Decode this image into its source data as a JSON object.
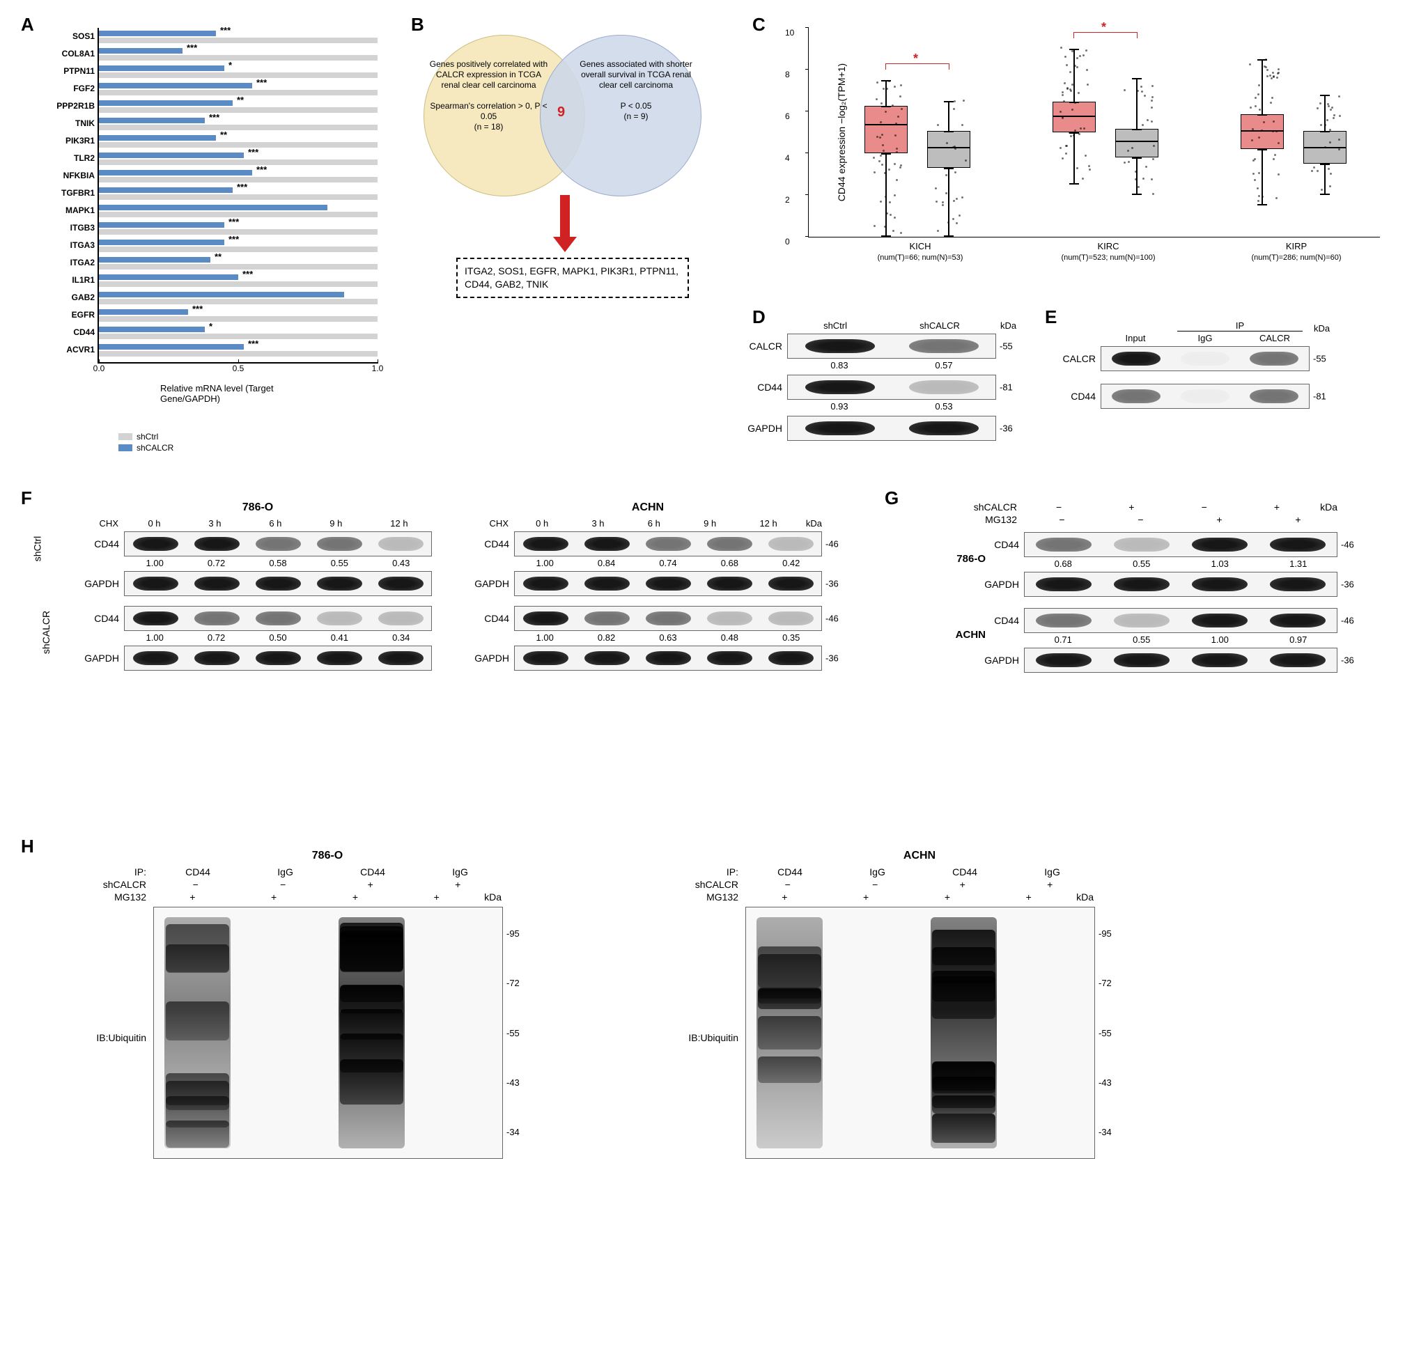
{
  "panel_labels": {
    "A": "A",
    "B": "B",
    "C": "C",
    "D": "D",
    "E": "E",
    "F": "F",
    "G": "G",
    "H": "H"
  },
  "colors": {
    "shCtrl": "#d3d3d3",
    "shCALCR": "#5b8bc5",
    "tumor_box": "#e98b8b",
    "normal_box": "#bdbdbd",
    "sig_red": "#d02222",
    "venn_left": "#f5e6b8",
    "venn_right": "#cdd9ea"
  },
  "panelA": {
    "xlabel": "Relative mRNA level (Target Gene/GAPDH)",
    "xmax": 1.0,
    "xticks": [
      0.0,
      0.5,
      1.0
    ],
    "legend": [
      "shCtrl",
      "shCALCR"
    ],
    "genes": [
      "SOS1",
      "COL8A1",
      "PTPN11",
      "FGF2",
      "PPP2R1B",
      "TNIK",
      "PIK3R1",
      "TLR2",
      "NFKBIA",
      "TGFBR1",
      "MAPK1",
      "ITGB3",
      "ITGA3",
      "ITGA2",
      "IL1R1",
      "GAB2",
      "EGFR",
      "CD44",
      "ACVR1"
    ],
    "shCtrl": [
      1.0,
      1.0,
      1.0,
      1.0,
      1.0,
      1.0,
      1.0,
      1.0,
      1.0,
      1.0,
      1.0,
      1.0,
      1.0,
      1.0,
      1.0,
      1.0,
      1.0,
      1.0,
      1.0
    ],
    "shCALCR": [
      0.42,
      0.3,
      0.45,
      0.55,
      0.48,
      0.38,
      0.42,
      0.52,
      0.55,
      0.48,
      0.82,
      0.45,
      0.45,
      0.4,
      0.5,
      0.88,
      0.32,
      0.38,
      0.52
    ],
    "sig": [
      "***",
      "***",
      "*",
      "***",
      "**",
      "***",
      "**",
      "***",
      "***",
      "***",
      "",
      "***",
      "***",
      "**",
      "***",
      "",
      "***",
      "*",
      "***"
    ]
  },
  "panelB": {
    "left_text": "Genes positively correlated with CALCR expression in TCGA renal clear cell carcinoma",
    "left_sub": "Spearman's correlation > 0, P < 0.05",
    "left_n": "(n = 18)",
    "right_text": "Genes associated with shorter overall survival in TCGA renal clear cell carcinoma",
    "right_sub": "P < 0.05",
    "right_n": "(n = 9)",
    "overlap": "9",
    "genes": "ITGA2, SOS1, EGFR, MAPK1, PIK3R1, PTPN11, CD44, GAB2, TNIK"
  },
  "panelC": {
    "ylabel": "CD44 expression −log₂(TPM+1)",
    "ymin": 0,
    "ymax": 10,
    "ystep": 2,
    "groups": [
      {
        "name": "KICH",
        "sub": "(num(T)=66; num(N)=53)",
        "T": {
          "q1": 4.0,
          "med": 5.3,
          "q3": 6.2,
          "lo": 0.0,
          "hi": 7.5
        },
        "N": {
          "q1": 3.3,
          "med": 4.2,
          "q3": 5.0,
          "lo": 0.0,
          "hi": 6.5
        },
        "sig": "*"
      },
      {
        "name": "KIRC",
        "sub": "(num(T)=523; num(N)=100)",
        "T": {
          "q1": 5.0,
          "med": 5.7,
          "q3": 6.4,
          "lo": 2.5,
          "hi": 9.0
        },
        "N": {
          "q1": 3.8,
          "med": 4.5,
          "q3": 5.1,
          "lo": 2.0,
          "hi": 7.6
        },
        "sig": "*"
      },
      {
        "name": "KIRP",
        "sub": "(num(T)=286; num(N)=60)",
        "T": {
          "q1": 4.2,
          "med": 5.0,
          "q3": 5.8,
          "lo": 1.5,
          "hi": 8.5
        },
        "N": {
          "q1": 3.5,
          "med": 4.2,
          "q3": 5.0,
          "lo": 2.0,
          "hi": 6.8
        },
        "sig": ""
      }
    ]
  },
  "panelD": {
    "lanes": [
      "shCtrl",
      "shCALCR"
    ],
    "kda_label": "kDa",
    "rows": [
      {
        "name": "CALCR",
        "kda": "-55",
        "intensity": [
          "strong",
          "med"
        ],
        "quant": [
          "0.83",
          "0.57"
        ]
      },
      {
        "name": "CD44",
        "kda": "-81",
        "intensity": [
          "strong",
          "faint"
        ],
        "quant": [
          "0.93",
          "0.53"
        ]
      },
      {
        "name": "GAPDH",
        "kda": "-36",
        "intensity": [
          "strong",
          "strong"
        ],
        "quant": []
      }
    ]
  },
  "panelE": {
    "header_group": "IP",
    "lanes": [
      "Input",
      "IgG",
      "CALCR"
    ],
    "kda_label": "kDa",
    "rows": [
      {
        "name": "CALCR",
        "kda": "-55",
        "intensity": [
          "strong",
          "none",
          "med"
        ]
      },
      {
        "name": "CD44",
        "kda": "-81",
        "intensity": [
          "med",
          "none",
          "med"
        ]
      }
    ]
  },
  "panelF": {
    "title786": "786-O",
    "titleACHN": "ACHN",
    "chx_label": "CHX",
    "kda_label": "kDa",
    "time_labels": [
      "0 h",
      "3 h",
      "6 h",
      "9 h",
      "12 h"
    ],
    "groups": [
      "shCtrl",
      "shCALCR"
    ],
    "rows": [
      {
        "grp": "shCtrl",
        "cell": "786-O",
        "name": "CD44",
        "kda": "-46",
        "int": [
          "strong",
          "strong",
          "med",
          "med",
          "faint"
        ],
        "q": [
          "1.00",
          "0.72",
          "0.58",
          "0.55",
          "0.43"
        ]
      },
      {
        "grp": "shCtrl",
        "cell": "786-O",
        "name": "GAPDH",
        "kda": "-36",
        "int": [
          "strong",
          "strong",
          "strong",
          "strong",
          "strong"
        ],
        "q": []
      },
      {
        "grp": "shCALCR",
        "cell": "786-O",
        "name": "CD44",
        "kda": "-46",
        "int": [
          "strong",
          "med",
          "med",
          "faint",
          "faint"
        ],
        "q": [
          "1.00",
          "0.72",
          "0.50",
          "0.41",
          "0.34"
        ]
      },
      {
        "grp": "shCALCR",
        "cell": "786-O",
        "name": "GAPDH",
        "kda": "-36",
        "int": [
          "strong",
          "strong",
          "strong",
          "strong",
          "strong"
        ],
        "q": []
      },
      {
        "grp": "shCtrl",
        "cell": "ACHN",
        "name": "CD44",
        "kda": "-46",
        "int": [
          "strong",
          "strong",
          "med",
          "med",
          "faint"
        ],
        "q": [
          "1.00",
          "0.84",
          "0.74",
          "0.68",
          "0.42"
        ]
      },
      {
        "grp": "shCtrl",
        "cell": "ACHN",
        "name": "GAPDH",
        "kda": "-36",
        "int": [
          "strong",
          "strong",
          "strong",
          "strong",
          "strong"
        ],
        "q": []
      },
      {
        "grp": "shCALCR",
        "cell": "ACHN",
        "name": "CD44",
        "kda": "-46",
        "int": [
          "strong",
          "med",
          "med",
          "faint",
          "faint"
        ],
        "q": [
          "1.00",
          "0.82",
          "0.63",
          "0.48",
          "0.35"
        ]
      },
      {
        "grp": "shCALCR",
        "cell": "ACHN",
        "name": "GAPDH",
        "kda": "-36",
        "int": [
          "strong",
          "strong",
          "strong",
          "strong",
          "strong"
        ],
        "q": []
      }
    ]
  },
  "panelG": {
    "cond_keys": [
      "shCALCR",
      "MG132"
    ],
    "cond_vals": [
      [
        "−",
        "+",
        "−",
        "+"
      ],
      [
        "−",
        "−",
        "+",
        "+"
      ]
    ],
    "kda_label": "kDa",
    "cells": [
      {
        "name": "786-O",
        "rows": [
          {
            "name": "CD44",
            "kda": "-46",
            "int": [
              "med",
              "faint",
              "strong",
              "strong"
            ],
            "q": [
              "0.68",
              "0.55",
              "1.03",
              "1.31"
            ]
          },
          {
            "name": "GAPDH",
            "kda": "-36",
            "int": [
              "strong",
              "strong",
              "strong",
              "strong"
            ],
            "q": []
          }
        ]
      },
      {
        "name": "ACHN",
        "rows": [
          {
            "name": "CD44",
            "kda": "-46",
            "int": [
              "med",
              "faint",
              "strong",
              "strong"
            ],
            "q": [
              "0.71",
              "0.55",
              "1.00",
              "0.97"
            ]
          },
          {
            "name": "GAPDH",
            "kda": "-36",
            "int": [
              "strong",
              "strong",
              "strong",
              "strong"
            ],
            "q": []
          }
        ]
      }
    ]
  },
  "panelH": {
    "cells": [
      "786-O",
      "ACHN"
    ],
    "ip_label": "IP:",
    "ip_lanes": [
      "CD44",
      "IgG",
      "CD44",
      "IgG"
    ],
    "cond_keys": [
      "shCALCR",
      "MG132"
    ],
    "cond_vals": [
      [
        "−",
        "−",
        "+",
        "+"
      ],
      [
        "+",
        "+",
        "+",
        "+"
      ]
    ],
    "kda_label": "kDa",
    "ladder": [
      "-95",
      "-72",
      "-55",
      "-43",
      "-34"
    ],
    "ib": "IB:Ubiquitin",
    "lane_density": [
      0.6,
      0.05,
      0.95,
      0.05
    ]
  }
}
